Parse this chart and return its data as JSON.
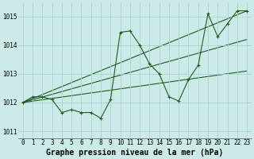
{
  "background_color": "#cceae8",
  "plot_bg_color": "#cceae8",
  "grid_color": "#aad4d2",
  "line_color": "#1e5c1e",
  "title": "Graphe pression niveau de la mer (hPa)",
  "ylim": [
    1010.75,
    1015.5
  ],
  "xlim": [
    -0.5,
    23.5
  ],
  "yticks": [
    1011,
    1012,
    1013,
    1014,
    1015
  ],
  "xticks": [
    0,
    1,
    2,
    3,
    4,
    5,
    6,
    7,
    8,
    9,
    10,
    11,
    12,
    13,
    14,
    15,
    16,
    17,
    18,
    19,
    20,
    21,
    22,
    23
  ],
  "series1_x": [
    0,
    1,
    2,
    3,
    4,
    5,
    6,
    7,
    8,
    9,
    10,
    11,
    12,
    13,
    14,
    15,
    16,
    17,
    18,
    19,
    20,
    21,
    22,
    23
  ],
  "series1_y": [
    1012.0,
    1012.2,
    1012.2,
    1012.1,
    1011.65,
    1011.75,
    1011.65,
    1011.65,
    1011.45,
    1012.1,
    1014.45,
    1014.5,
    1014.0,
    1013.35,
    1013.0,
    1012.2,
    1012.05,
    1012.8,
    1013.3,
    1015.1,
    1014.3,
    1014.75,
    1015.2,
    1015.2
  ],
  "trend1_x": [
    0,
    23
  ],
  "trend1_y": [
    1012.0,
    1015.2
  ],
  "trend2_x": [
    0,
    23
  ],
  "trend2_y": [
    1012.0,
    1014.2
  ],
  "trend3_x": [
    0,
    23
  ],
  "trend3_y": [
    1012.0,
    1013.1
  ],
  "title_fontsize": 7,
  "tick_fontsize": 5.5,
  "linewidth": 0.8,
  "markersize": 2.5
}
